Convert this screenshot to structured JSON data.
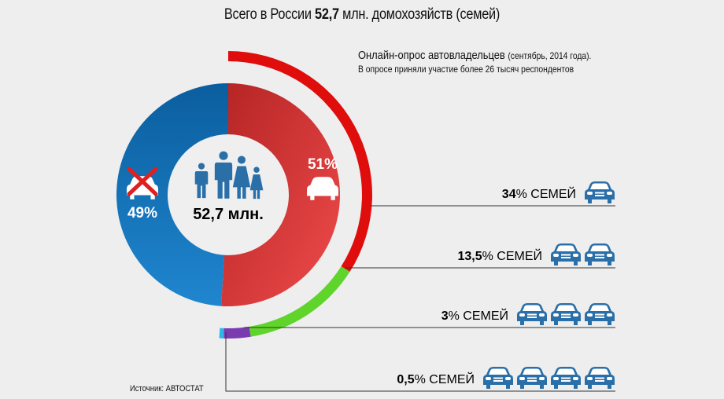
{
  "title": {
    "prefix": "Всего в России ",
    "value": "52,7",
    "suffix": " млн. домохозяйств (семей)"
  },
  "survey": {
    "line1_main": "Онлайн-опрос автовладельцев ",
    "line1_small": "(сентябрь, 2014 года).",
    "line2": "В опросе приняли участие более 26 тысяч респондентов"
  },
  "source": "Источник: АВТОСТАТ",
  "colors": {
    "no_car": "#0f6fb5",
    "with_car": "#d83a3a",
    "one_car": "#e00d0d",
    "two_cars": "#5fd42a",
    "three_cars": "#7b3bb0",
    "four_cars": "#2fb7e8",
    "car_icon": "#2b6fa8"
  },
  "chart_data": [
    {
      "type": "pie",
      "center_label": "52,7 млн.",
      "slices": [
        {
          "label": "49%",
          "value": 49,
          "meaning": "no-car"
        },
        {
          "label": "51%",
          "value": 51,
          "meaning": "car"
        }
      ]
    },
    {
      "type": "bar",
      "categories": [
        "1",
        "2",
        "3",
        "4"
      ],
      "values": [
        34,
        13.5,
        3,
        0.5
      ],
      "value_labels": [
        {
          "num": "34",
          "rest": "% СЕМЕЙ"
        },
        {
          "num": "13,5",
          "rest": "% СЕМЕЙ"
        },
        {
          "num": "3",
          "rest": "% СЕМЕЙ"
        },
        {
          "num": "0,5",
          "rest": "% СЕМЕЙ"
        }
      ],
      "icons": "car-icon"
    }
  ]
}
